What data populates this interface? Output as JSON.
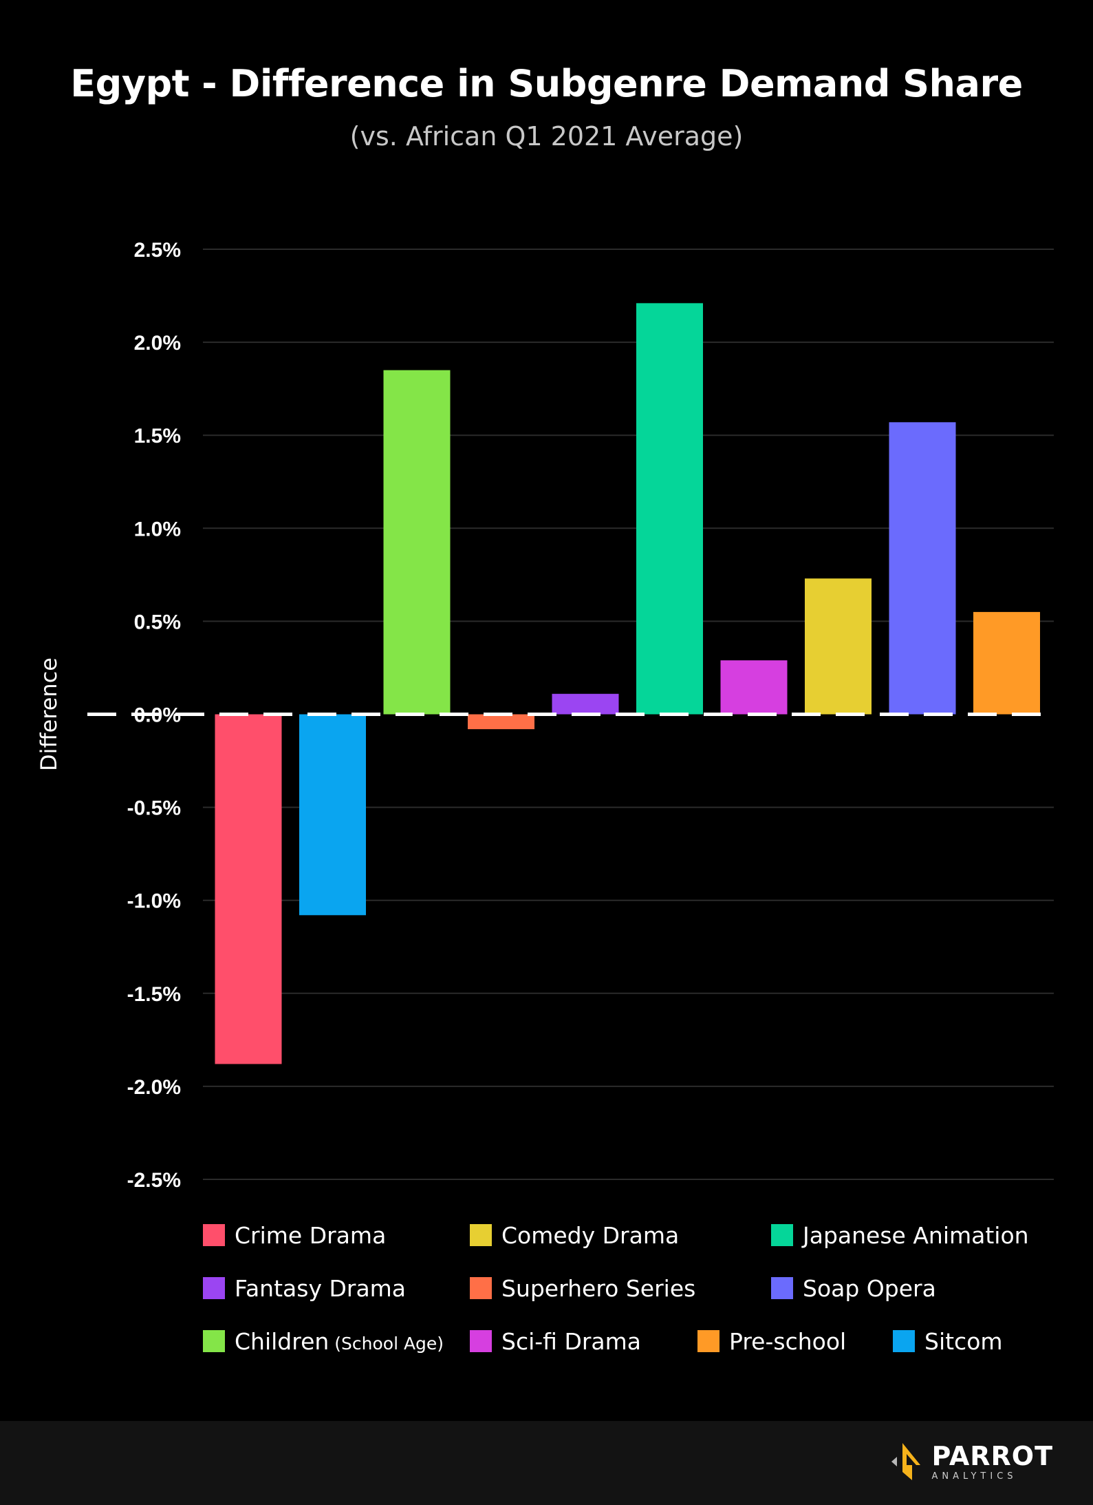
{
  "header": {
    "title": "Egypt - Difference in Subgenre Demand Share",
    "subtitle": "(vs. African Q1 2021 Average)"
  },
  "chart_data": {
    "type": "bar",
    "title": "Egypt - Difference in Subgenre Demand Share",
    "subtitle": "(vs. African Q1 2021 Average)",
    "ylabel": "Difference",
    "xlabel": "",
    "ylim": [
      -2.5,
      2.5
    ],
    "yticks": [
      2.5,
      2.0,
      1.5,
      1.0,
      0.5,
      0.0,
      -0.5,
      -1.0,
      -1.5,
      -2.0,
      -2.5
    ],
    "ytick_labels": [
      "2.5%",
      "2.0%",
      "1.5%",
      "1.0%",
      "0.5%",
      "0.0%",
      "-0.5%",
      "-1.0%",
      "-1.5%",
      "-2.0%",
      "-2.5%"
    ],
    "grid": true,
    "legend_position": "bottom",
    "categories": [
      "Crime Drama",
      "Sitcom",
      "Children (School Age)",
      "Superhero Series",
      "Fantasy Drama",
      "Japanese Animation",
      "Sci-fi Drama",
      "Comedy Drama",
      "Soap Opera",
      "Pre-school"
    ],
    "values": [
      -1.88,
      -1.08,
      1.85,
      -0.08,
      0.11,
      2.21,
      0.29,
      0.73,
      1.57,
      0.55
    ],
    "colors": [
      "#ff4f6b",
      "#0aa5f0",
      "#84e548",
      "#ff6f47",
      "#9b45f2",
      "#05d699",
      "#d63fe0",
      "#e7cf32",
      "#6b6bfd",
      "#ff9a26"
    ]
  },
  "legend": {
    "items": [
      {
        "label": "Crime Drama",
        "note": "",
        "color": "#ff4f6b"
      },
      {
        "label": "Comedy Drama",
        "note": "",
        "color": "#e7cf32"
      },
      {
        "label": "Japanese Animation",
        "note": "",
        "color": "#05d699"
      },
      {
        "label": "Fantasy Drama",
        "note": "",
        "color": "#9b45f2"
      },
      {
        "label": "Superhero Series",
        "note": "",
        "color": "#ff6f47"
      },
      {
        "label": "Soap Opera",
        "note": "",
        "color": "#6b6bfd"
      },
      {
        "label": "Children",
        "note": "(School Age)",
        "color": "#84e548"
      },
      {
        "label": "Sci-fi Drama",
        "note": "",
        "color": "#d63fe0"
      },
      {
        "label": "Pre-school",
        "note": "",
        "color": "#ff9a26"
      },
      {
        "label": "Sitcom",
        "note": "",
        "color": "#0aa5f0"
      }
    ]
  },
  "footer": {
    "logo_name": "PARROT",
    "logo_sub": "ANALYTICS"
  }
}
